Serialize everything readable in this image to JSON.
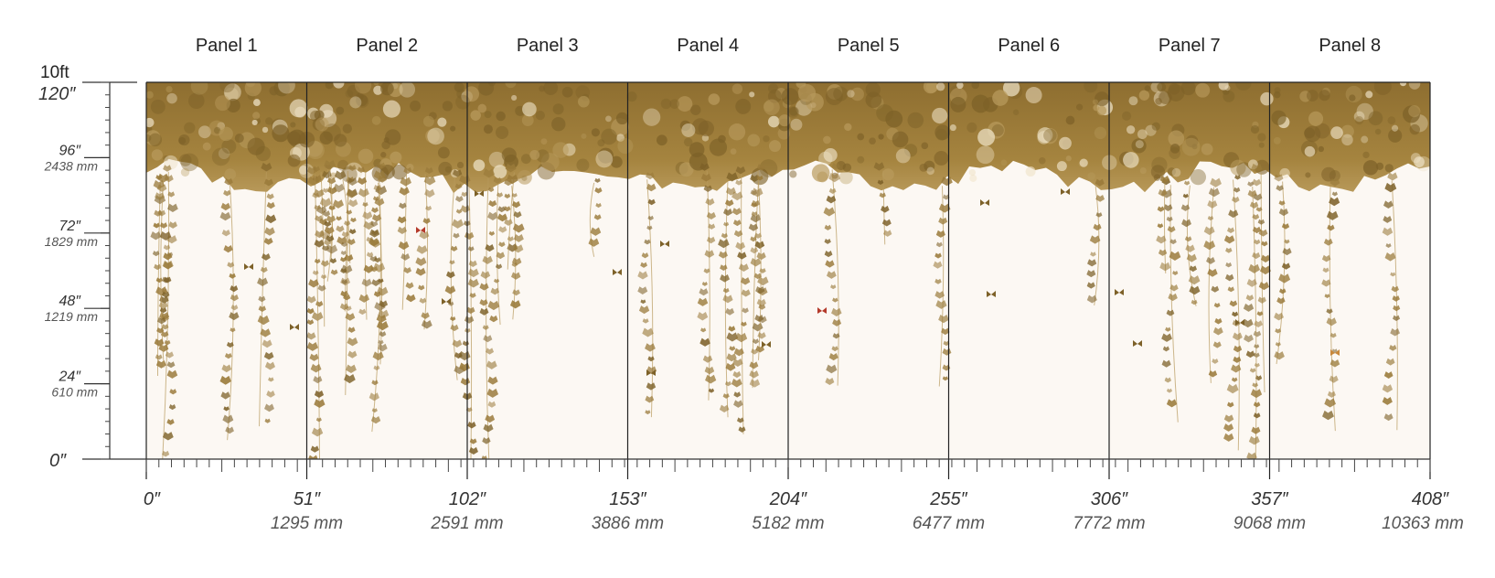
{
  "panels": [
    "Panel 1",
    "Panel 2",
    "Panel 3",
    "Panel 4",
    "Panel 5",
    "Panel 6",
    "Panel 7",
    "Panel 8"
  ],
  "y_axis": {
    "top_label_ft": "10ft",
    "top_label_in": "120″",
    "bottom_label": "0″",
    "marks": [
      {
        "inch": "96″",
        "mm": "2438 mm",
        "value": 96
      },
      {
        "inch": "72″",
        "mm": "1829 mm",
        "value": 72
      },
      {
        "inch": "48″",
        "mm": "1219 mm",
        "value": 48
      },
      {
        "inch": "24″",
        "mm": "610 mm",
        "value": 24
      }
    ],
    "max": 120
  },
  "x_axis": {
    "marks": [
      {
        "inch": "0″",
        "mm": ""
      },
      {
        "inch": "51″",
        "mm": "1295 mm"
      },
      {
        "inch": "102″",
        "mm": "2591 mm"
      },
      {
        "inch": "153″",
        "mm": "3886 mm"
      },
      {
        "inch": "204″",
        "mm": "5182 mm"
      },
      {
        "inch": "255″",
        "mm": "6477 mm"
      },
      {
        "inch": "306″",
        "mm": "7772 mm"
      },
      {
        "inch": "357″",
        "mm": "9068 mm"
      },
      {
        "inch": "408″",
        "mm": "10363 mm"
      }
    ]
  },
  "colors": {
    "foliage": "#9a7a3a",
    "foliage_dark": "#7d6128",
    "foliage_light": "#b89a5c",
    "background": "#fcf8f3",
    "divider": "#222222",
    "accent_red": "#b43a2a"
  }
}
